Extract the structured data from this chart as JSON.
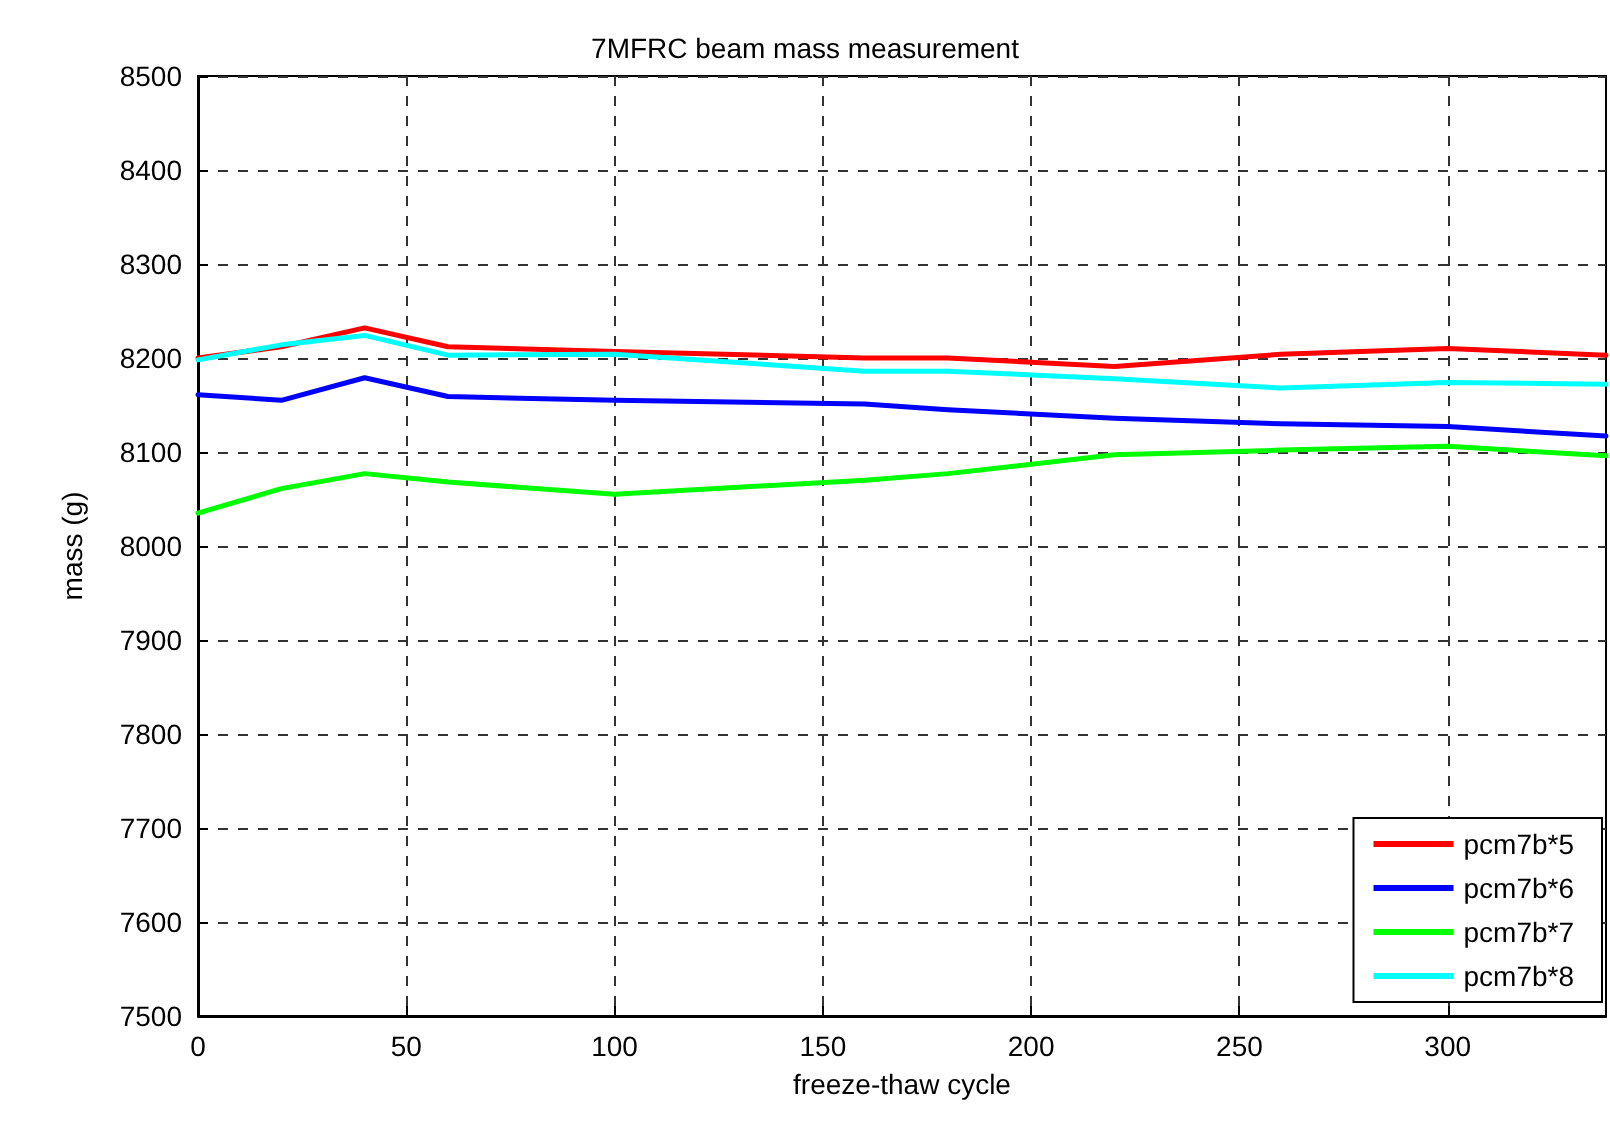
{
  "chart_data": {
    "type": "line",
    "title": "7MFRC beam mass measurement",
    "xlabel": "freeze-thaw cycle",
    "ylabel": "mass (g)",
    "x": [
      0,
      20,
      40,
      60,
      100,
      160,
      180,
      220,
      260,
      300,
      338
    ],
    "series": [
      {
        "name": "pcm7b*5",
        "color": "#ff0000",
        "values": [
          8200,
          8212,
          8232,
          8212,
          8207,
          8200,
          8200,
          8191,
          8204,
          8210,
          8203
        ]
      },
      {
        "name": "pcm7b*6",
        "color": "#0000ff",
        "values": [
          8161,
          8155,
          8179,
          8159,
          8155,
          8151,
          8145,
          8136,
          8130,
          8127,
          8117
        ]
      },
      {
        "name": "pcm7b*7",
        "color": "#00ff00",
        "values": [
          8035,
          8061,
          8077,
          8068,
          8055,
          8070,
          8077,
          8097,
          8102,
          8106,
          8096
        ]
      },
      {
        "name": "pcm7b*8",
        "color": "#00ffff",
        "values": [
          8198,
          8214,
          8224,
          8203,
          8204,
          8186,
          8186,
          8178,
          8168,
          8174,
          8172
        ]
      }
    ],
    "xlim": [
      0,
      338
    ],
    "xticks": [
      0,
      50,
      100,
      150,
      200,
      250,
      300
    ],
    "ylim": [
      7500,
      8500
    ],
    "yticks": [
      7500,
      7600,
      7700,
      7800,
      7900,
      8000,
      8100,
      8200,
      8300,
      8400,
      8500
    ],
    "grid": true,
    "legend": "bottom right",
    "marker": "none",
    "line_style": "solid"
  }
}
